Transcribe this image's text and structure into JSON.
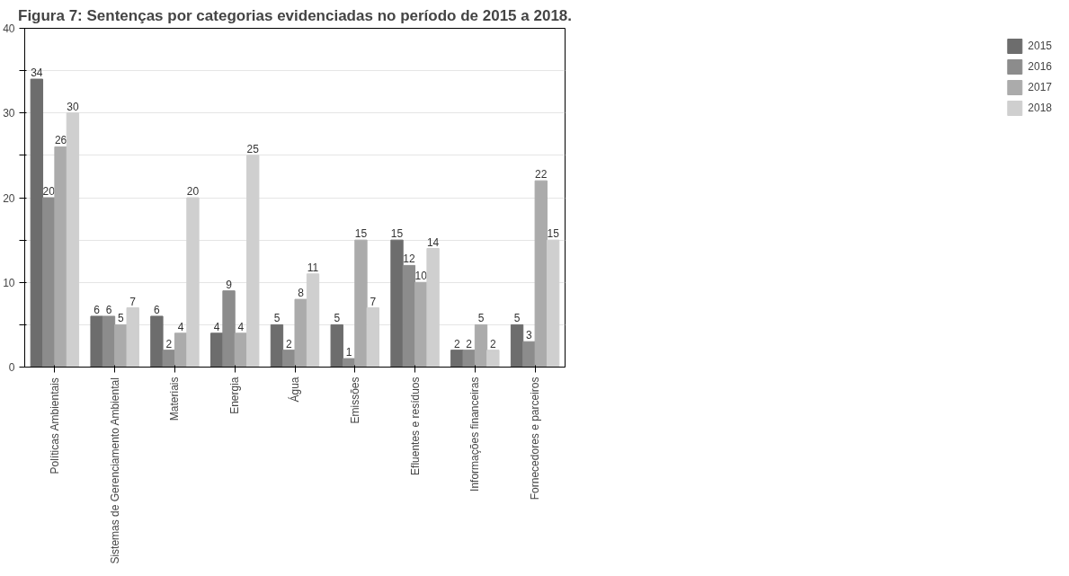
{
  "chart_data": {
    "type": "bar",
    "title": "Figura 7: Sentenças por categorias evidenciadas no período de 2015 a 2018.",
    "categories": [
      "Políticas Ambientais",
      "Sistemas de Gerenciamento Ambiental",
      "Materiais",
      "Energia",
      "Água",
      "Emissões",
      "Efluentes e resíduos",
      "Informações financeiras",
      "Fornecedores e parceiros"
    ],
    "series": [
      {
        "name": "2015",
        "color": "#6d6d6d",
        "values": [
          34,
          6,
          6,
          4,
          5,
          5,
          15,
          2,
          5
        ]
      },
      {
        "name": "2016",
        "color": "#8c8c8c",
        "values": [
          20,
          6,
          2,
          9,
          2,
          1,
          12,
          2,
          3
        ]
      },
      {
        "name": "2017",
        "color": "#ababab",
        "values": [
          26,
          5,
          4,
          4,
          8,
          15,
          10,
          5,
          22
        ]
      },
      {
        "name": "2018",
        "color": "#cfcfcf",
        "values": [
          30,
          7,
          20,
          25,
          11,
          7,
          14,
          2,
          15
        ]
      }
    ],
    "ylim": [
      0,
      40
    ],
    "yticks": [
      0,
      {
        "value": 5,
        "label": null
      },
      10,
      {
        "value": 15,
        "label": null
      },
      20,
      {
        "value": 25,
        "label": null
      },
      30,
      {
        "value": 35,
        "label": null
      },
      40
    ],
    "grid": "y",
    "legend": "right",
    "data_labels": true
  }
}
